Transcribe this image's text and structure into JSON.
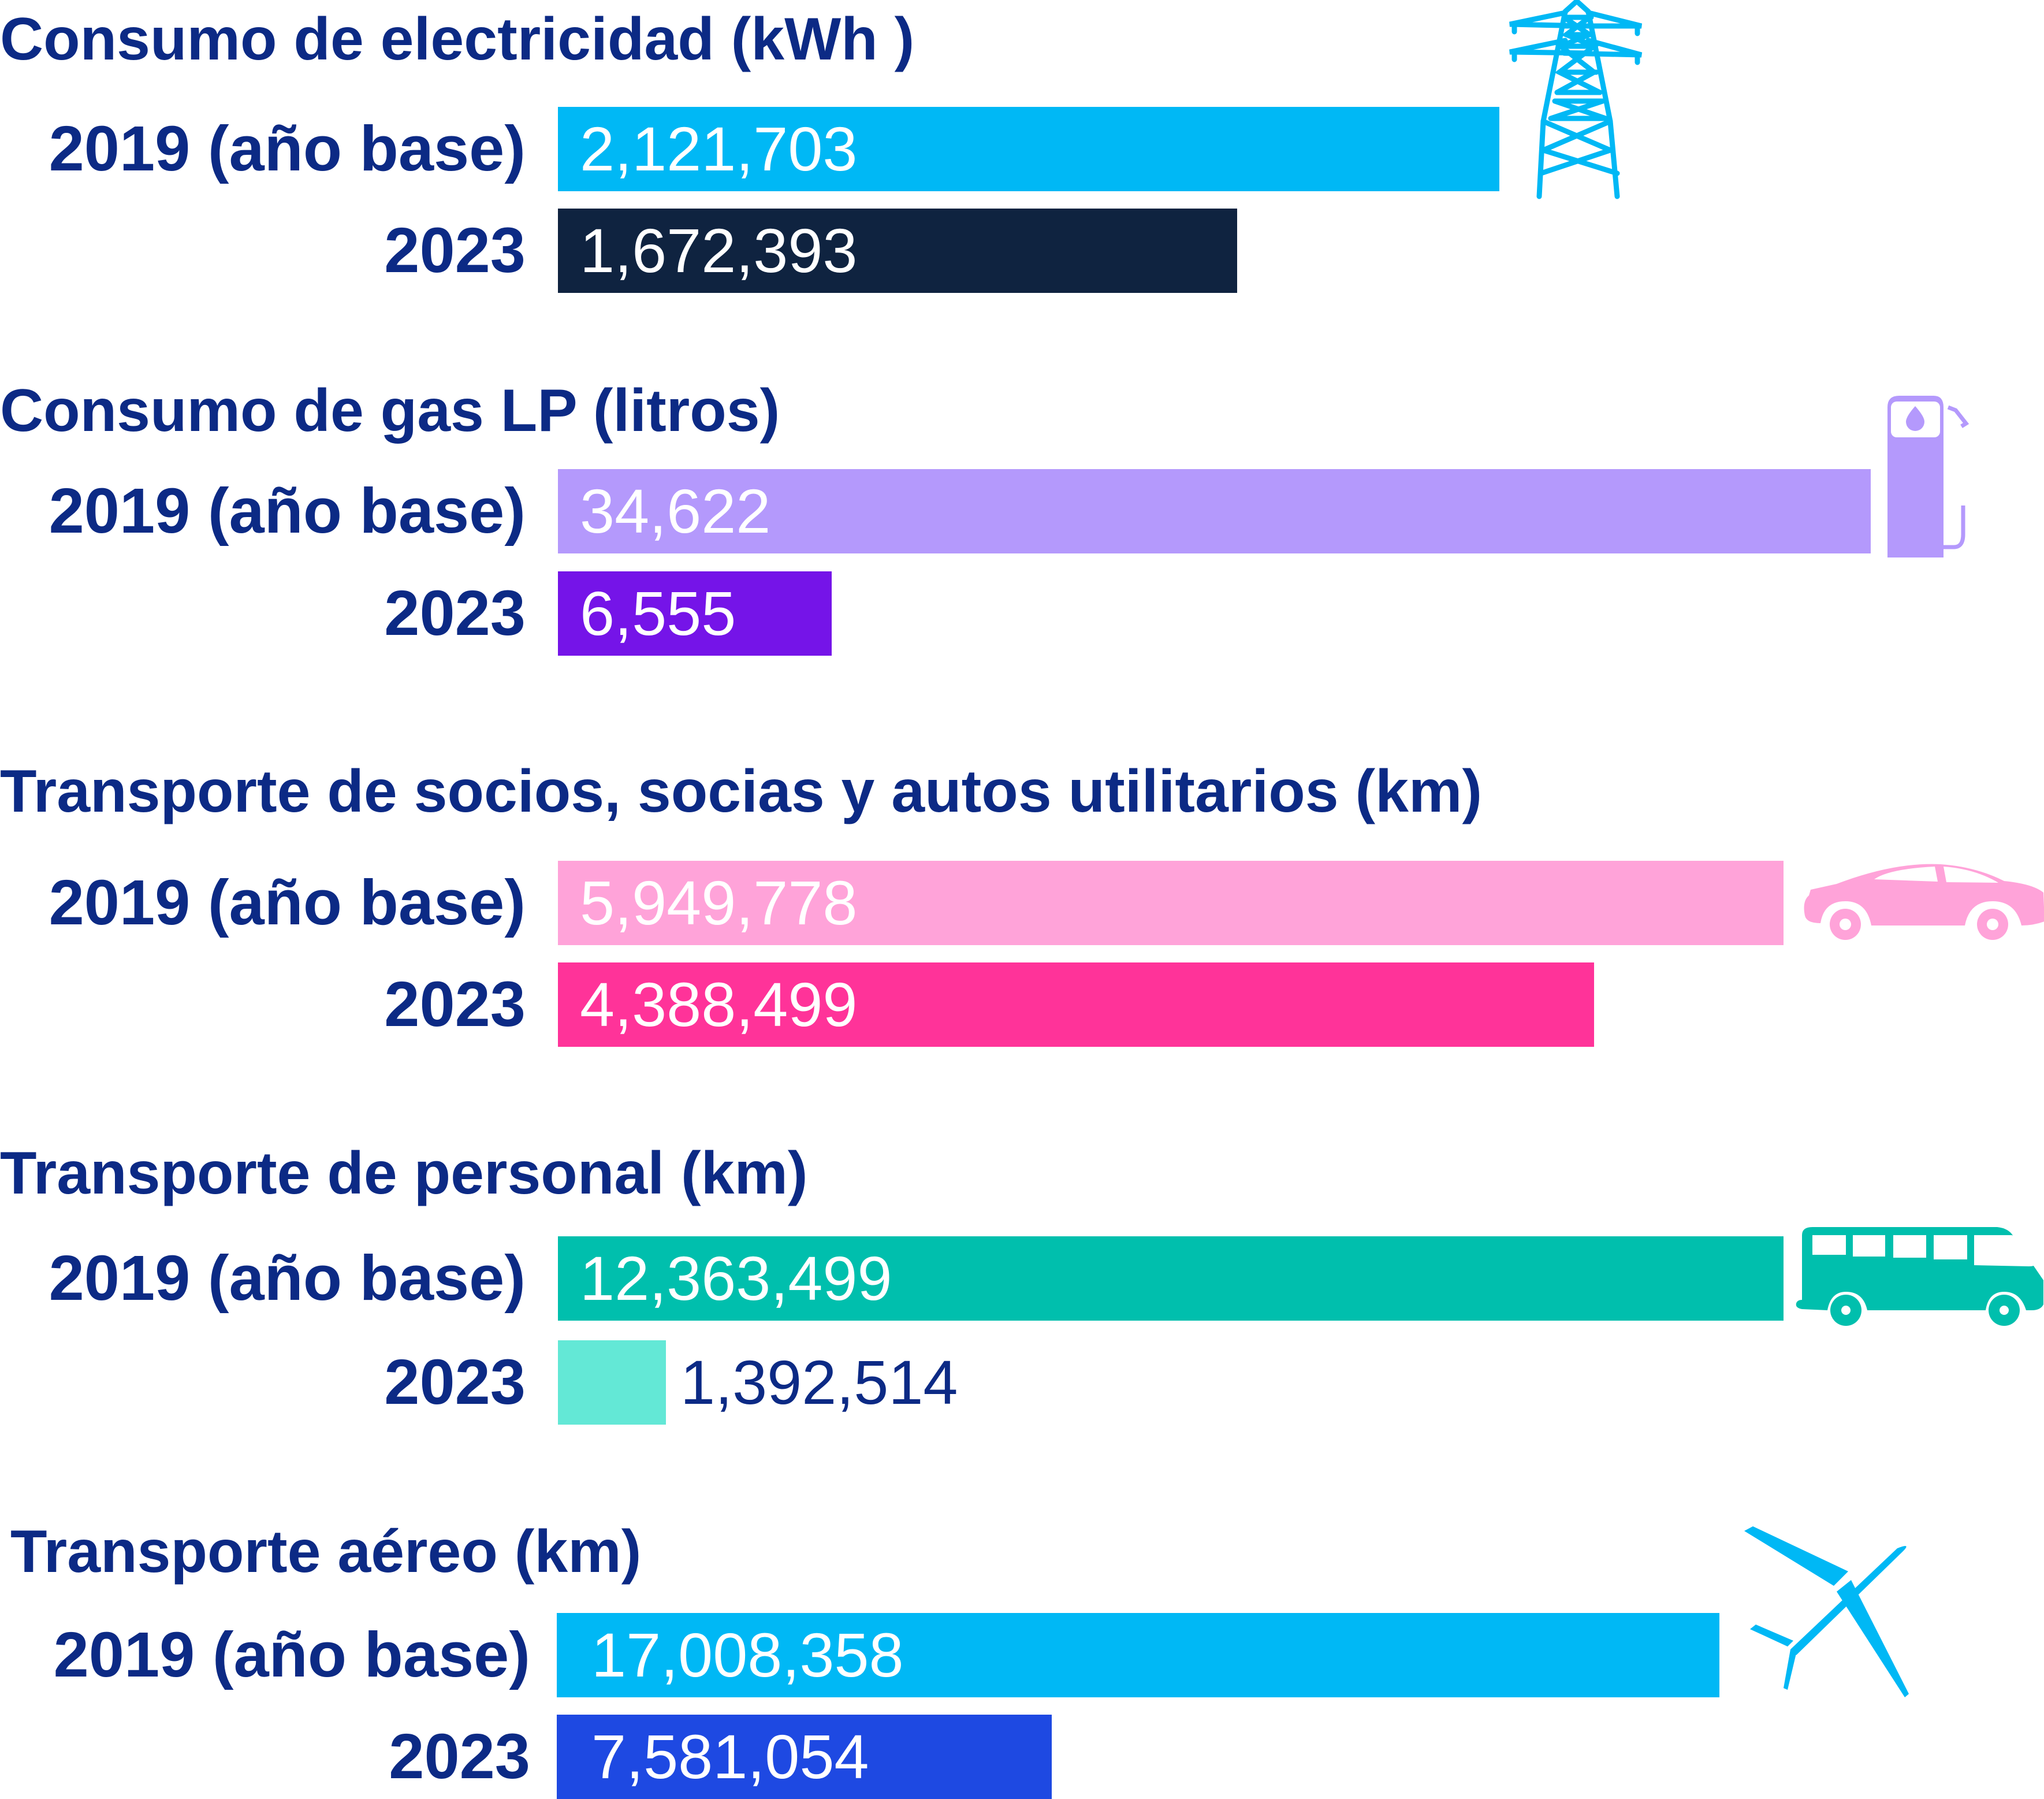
{
  "chart_data": {
    "type": "bar",
    "orientation": "horizontal",
    "groups": [
      {
        "title": "Consumo de electricidad (kWh )",
        "icon": "power-tower-icon",
        "bars": [
          {
            "label": "2019 (año base)",
            "value": 2121703,
            "display": "2,121,703",
            "color": "#00b8f5"
          },
          {
            "label": "2023",
            "value": 1672393,
            "display": "1,672,393",
            "color": "#0f2340"
          }
        ]
      },
      {
        "title": "Consumo de gas LP (litros)",
        "icon": "gas-pump-icon",
        "bars": [
          {
            "label": "2019 (año base)",
            "value": 34622,
            "display": "34,622",
            "color": "#b499fc"
          },
          {
            "label": "2023",
            "value": 6555,
            "display": "6,555",
            "color": "#7514e8"
          }
        ]
      },
      {
        "title": "Transporte de socios, socias y autos utilitarios (km)",
        "icon": "car-icon",
        "bars": [
          {
            "label": "2019 (año base)",
            "value": 5949778,
            "display": "5,949,778",
            "color": "#ffa3d9"
          },
          {
            "label": "2023",
            "value": 4388499,
            "display": "4,388,499",
            "color": "#ff3399"
          }
        ]
      },
      {
        "title": "Transporte de personal (km)",
        "icon": "bus-icon",
        "bars": [
          {
            "label": "2019 (año base)",
            "value": 12363499,
            "display": "12,363,499",
            "color": "#00bfad"
          },
          {
            "label": "2023",
            "value": 1392514,
            "display": "1,392,514",
            "color": "#63e8d6"
          }
        ]
      },
      {
        "title": "Transporte aéreo (km)",
        "icon": "airplane-icon",
        "bars": [
          {
            "label": "2019 (año base)",
            "value": 17008358,
            "display": "17,008,358",
            "color": "#00b8f5"
          },
          {
            "label": "2023",
            "value": 7581054,
            "display": "7,581,054",
            "color": "#1e49e2"
          }
        ]
      }
    ]
  }
}
